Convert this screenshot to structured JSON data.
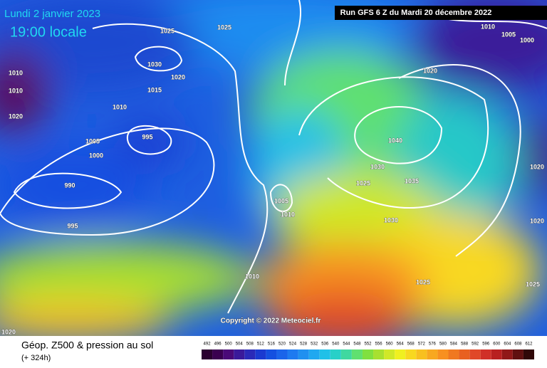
{
  "header": {
    "date": "Lundi 2 janvier 2023",
    "time": "19:00 locale",
    "run": "Run GFS 6 Z du Mardi 20 décembre 2022"
  },
  "isobar_labels": [
    1025,
    1025,
    1010,
    1005,
    1000,
    1030,
    1020,
    1015,
    1020,
    1010,
    1010,
    1020,
    1010,
    995,
    1005,
    1000,
    990,
    995,
    1040,
    1030,
    1035,
    1025,
    1020,
    1005,
    1010,
    1030,
    1020,
    1010,
    1025,
    1025,
    1020
  ],
  "copyright": "Copyright © 2022 Meteociel.fr",
  "footer": {
    "title": "Géop. Z500 & pression au sol",
    "lead": "(+ 324h)"
  },
  "scale": {
    "labels": [
      492,
      496,
      500,
      504,
      508,
      512,
      516,
      520,
      524,
      528,
      532,
      536,
      540,
      544,
      548,
      552,
      556,
      560,
      564,
      568,
      572,
      576,
      580,
      584,
      588,
      592,
      596,
      600,
      604,
      608,
      612
    ],
    "colors": [
      "#2a0030",
      "#3a0050",
      "#4a0a78",
      "#3a1a9a",
      "#2a2ab8",
      "#1a3ad0",
      "#1450e0",
      "#1a64ea",
      "#1e7af0",
      "#2090f0",
      "#20a8f0",
      "#20c0e8",
      "#28d0c8",
      "#40d8a0",
      "#60e070",
      "#80e040",
      "#a8e030",
      "#d0e828",
      "#f0f020",
      "#f8d820",
      "#f8c020",
      "#f8a820",
      "#f89020",
      "#f07820",
      "#e86020",
      "#e04828",
      "#d03028",
      "#b82020",
      "#901818",
      "#601010",
      "#300808"
    ]
  }
}
